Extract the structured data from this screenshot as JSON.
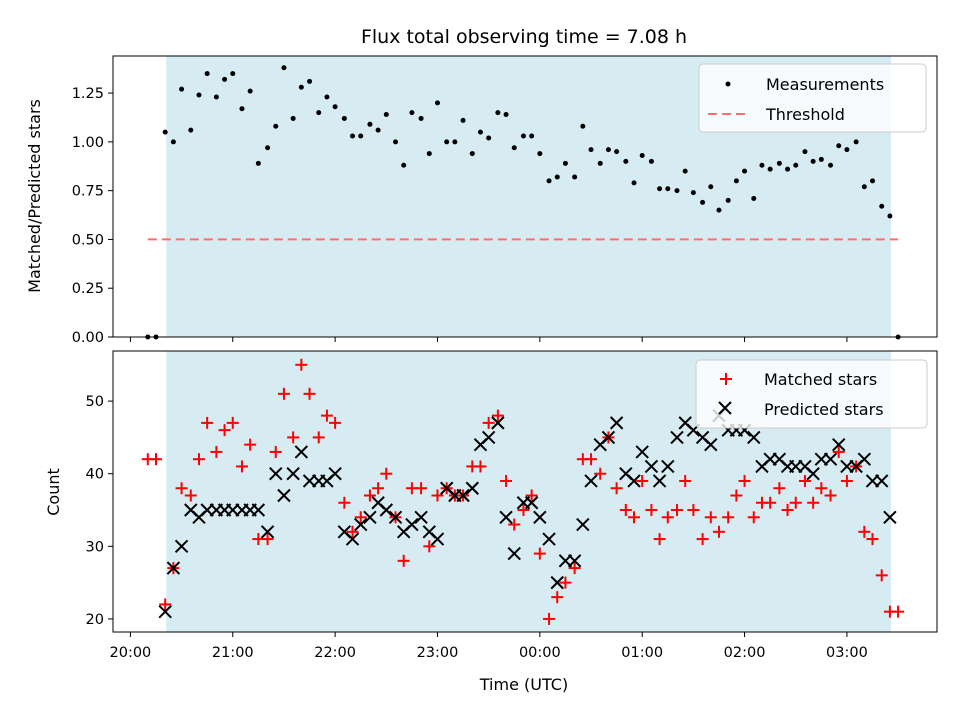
{
  "chart_data": [
    {
      "type": "scatter",
      "title": "Flux total observing time = 7.08 h",
      "xlabel": "",
      "ylabel": "Matched/Predicted stars",
      "ylim": [
        0,
        1.44
      ],
      "yticks": [
        "0.00",
        "0.25",
        "0.50",
        "0.75",
        "1.00",
        "1.25"
      ],
      "ytick_values": [
        0,
        0.25,
        0.5,
        0.75,
        1.0,
        1.25
      ],
      "legend_position": "top-right",
      "series": [
        {
          "name": "Measurements",
          "marker": "dot",
          "color": "#000000",
          "points": [
            [
              20.17,
              0
            ],
            [
              20.25,
              0
            ],
            [
              20.34,
              1.05
            ],
            [
              20.42,
              1.0
            ],
            [
              20.5,
              1.27
            ],
            [
              20.59,
              1.06
            ],
            [
              20.67,
              1.24
            ],
            [
              20.75,
              1.35
            ],
            [
              20.84,
              1.23
            ],
            [
              20.92,
              1.32
            ],
            [
              21.0,
              1.35
            ],
            [
              21.09,
              1.17
            ],
            [
              21.17,
              1.26
            ],
            [
              21.25,
              0.89
            ],
            [
              21.34,
              0.97
            ],
            [
              21.42,
              1.08
            ],
            [
              21.5,
              1.38
            ],
            [
              21.59,
              1.12
            ],
            [
              21.67,
              1.28
            ],
            [
              21.75,
              1.31
            ],
            [
              21.84,
              1.15
            ],
            [
              21.92,
              1.23
            ],
            [
              22.0,
              1.18
            ],
            [
              22.09,
              1.12
            ],
            [
              22.17,
              1.03
            ],
            [
              22.25,
              1.03
            ],
            [
              22.34,
              1.09
            ],
            [
              22.42,
              1.06
            ],
            [
              22.5,
              1.14
            ],
            [
              22.59,
              1.0
            ],
            [
              22.67,
              0.88
            ],
            [
              22.75,
              1.15
            ],
            [
              22.84,
              1.12
            ],
            [
              22.92,
              0.94
            ],
            [
              23.0,
              1.2
            ],
            [
              23.09,
              1.0
            ],
            [
              23.17,
              1.0
            ],
            [
              23.25,
              1.11
            ],
            [
              23.34,
              0.94
            ],
            [
              23.42,
              1.05
            ],
            [
              23.5,
              1.02
            ],
            [
              23.59,
              1.15
            ],
            [
              23.67,
              1.14
            ],
            [
              23.75,
              0.97
            ],
            [
              23.84,
              1.03
            ],
            [
              23.92,
              1.03
            ],
            [
              24.0,
              0.94
            ],
            [
              24.09,
              0.8
            ],
            [
              24.17,
              0.82
            ],
            [
              24.25,
              0.89
            ],
            [
              24.34,
              0.82
            ],
            [
              24.42,
              1.08
            ],
            [
              24.5,
              0.96
            ],
            [
              24.59,
              0.89
            ],
            [
              24.67,
              0.96
            ],
            [
              24.75,
              0.95
            ],
            [
              24.84,
              0.9
            ],
            [
              24.92,
              0.79
            ],
            [
              25.0,
              0.93
            ],
            [
              25.09,
              0.9
            ],
            [
              25.17,
              0.76
            ],
            [
              25.25,
              0.76
            ],
            [
              25.34,
              0.75
            ],
            [
              25.42,
              0.85
            ],
            [
              25.5,
              0.74
            ],
            [
              25.59,
              0.69
            ],
            [
              25.67,
              0.77
            ],
            [
              25.75,
              0.65
            ],
            [
              25.84,
              0.7
            ],
            [
              25.92,
              0.8
            ],
            [
              26.0,
              0.85
            ],
            [
              26.09,
              0.71
            ],
            [
              26.17,
              0.88
            ],
            [
              26.25,
              0.86
            ],
            [
              26.34,
              0.89
            ],
            [
              26.42,
              0.86
            ],
            [
              26.5,
              0.88
            ],
            [
              26.59,
              0.95
            ],
            [
              26.67,
              0.9
            ],
            [
              26.75,
              0.91
            ],
            [
              26.84,
              0.88
            ],
            [
              26.92,
              0.98
            ],
            [
              27.0,
              0.96
            ],
            [
              27.09,
              1.0
            ],
            [
              27.17,
              0.77
            ],
            [
              27.25,
              0.8
            ],
            [
              27.34,
              0.67
            ],
            [
              27.42,
              0.62
            ],
            [
              27.5,
              0
            ]
          ]
        },
        {
          "name": "Threshold",
          "type": "line",
          "style": "dashed",
          "color": "#ff6e6e",
          "x": [
            20.17,
            27.5
          ],
          "y": [
            0.5,
            0.5
          ]
        }
      ]
    },
    {
      "type": "scatter",
      "xlabel": "Time (UTC)",
      "ylabel": "Count",
      "ylim": [
        18.2,
        56.9
      ],
      "yticks": [
        "20",
        "30",
        "40",
        "50"
      ],
      "ytick_values": [
        20,
        30,
        40,
        50
      ],
      "xticks": [
        "20:00",
        "21:00",
        "22:00",
        "23:00",
        "00:00",
        "01:00",
        "02:00",
        "03:00"
      ],
      "xtick_values": [
        20,
        21,
        22,
        23,
        24,
        25,
        26,
        27
      ],
      "legend_position": "top-right",
      "series": [
        {
          "name": "Matched stars",
          "marker": "plus",
          "color": "#ff0000",
          "x": [
            20.17,
            20.25,
            20.34,
            20.42,
            20.5,
            20.59,
            20.67,
            20.75,
            20.84,
            20.92,
            21.0,
            21.09,
            21.17,
            21.25,
            21.34,
            21.42,
            21.5,
            21.59,
            21.67,
            21.75,
            21.84,
            21.92,
            22.0,
            22.09,
            22.17,
            22.25,
            22.34,
            22.42,
            22.5,
            22.59,
            22.67,
            22.75,
            22.84,
            22.92,
            23.0,
            23.09,
            23.17,
            23.25,
            23.34,
            23.42,
            23.5,
            23.59,
            23.67,
            23.75,
            23.84,
            23.92,
            24.0,
            24.09,
            24.17,
            24.25,
            24.34,
            24.42,
            24.5,
            24.59,
            24.67,
            24.75,
            24.84,
            24.92,
            25.0,
            25.09,
            25.17,
            25.25,
            25.34,
            25.42,
            25.5,
            25.59,
            25.67,
            25.75,
            25.84,
            25.92,
            26.0,
            26.09,
            26.17,
            26.25,
            26.34,
            26.42,
            26.5,
            26.59,
            26.67,
            26.75,
            26.84,
            26.92,
            27.0,
            27.09,
            27.17,
            27.25,
            27.34,
            27.42,
            27.5
          ],
          "y": [
            42,
            42,
            22,
            27,
            38,
            37,
            42,
            47,
            43,
            46,
            47,
            41,
            44,
            31,
            31,
            43,
            51,
            45,
            55,
            51,
            45,
            48,
            47,
            36,
            32,
            34,
            37,
            38,
            40,
            34,
            28,
            38,
            38,
            30,
            37,
            38,
            37,
            37,
            41,
            41,
            47,
            48,
            39,
            33,
            35,
            37,
            29,
            20,
            23,
            25,
            27,
            42,
            42,
            40,
            45,
            38,
            35,
            34,
            39,
            35,
            31,
            34,
            35,
            39,
            35,
            31,
            34,
            32,
            34,
            37,
            39,
            34,
            36,
            36,
            38,
            35,
            36,
            39,
            36,
            38,
            37,
            43,
            39,
            41,
            32,
            31,
            26,
            21,
            21
          ]
        },
        {
          "name": "Predicted stars",
          "marker": "x",
          "color": "#000000",
          "x": [
            20.34,
            20.42,
            20.5,
            20.59,
            20.67,
            20.75,
            20.84,
            20.92,
            21.0,
            21.09,
            21.17,
            21.25,
            21.34,
            21.42,
            21.5,
            21.59,
            21.67,
            21.75,
            21.84,
            21.92,
            22.0,
            22.09,
            22.17,
            22.25,
            22.34,
            22.42,
            22.5,
            22.59,
            22.67,
            22.75,
            22.84,
            22.92,
            23.0,
            23.09,
            23.17,
            23.25,
            23.34,
            23.42,
            23.5,
            23.59,
            23.67,
            23.75,
            23.84,
            23.92,
            24.0,
            24.09,
            24.17,
            24.25,
            24.34,
            24.42,
            24.5,
            24.59,
            24.67,
            24.75,
            24.84,
            24.92,
            25.0,
            25.09,
            25.17,
            25.25,
            25.34,
            25.42,
            25.5,
            25.59,
            25.67,
            25.75,
            25.84,
            25.92,
            26.0,
            26.09,
            26.17,
            26.25,
            26.34,
            26.42,
            26.5,
            26.59,
            26.67,
            26.75,
            26.84,
            26.92,
            27.0,
            27.09,
            27.17,
            27.25,
            27.34,
            27.42
          ],
          "y": [
            21,
            27,
            30,
            35,
            34,
            35,
            35,
            35,
            35,
            35,
            35,
            35,
            32,
            40,
            37,
            40,
            43,
            39,
            39,
            39,
            40,
            32,
            31,
            33,
            34,
            36,
            35,
            34,
            32,
            33,
            34,
            32,
            31,
            38,
            37,
            37,
            38,
            44,
            45,
            47,
            34,
            29,
            36,
            36,
            34,
            31,
            25,
            28,
            28,
            33,
            39,
            44,
            45,
            47,
            40,
            39,
            43,
            41,
            39,
            41,
            45,
            47,
            46,
            45,
            44,
            48,
            46,
            46,
            46,
            45,
            41,
            42,
            42,
            41,
            41,
            41,
            40,
            42,
            42,
            44,
            41,
            41,
            42,
            39,
            39,
            34
          ]
        }
      ]
    }
  ],
  "shaded_range": {
    "x_start": 20.35,
    "x_end": 27.43,
    "color": "#add8e6"
  }
}
